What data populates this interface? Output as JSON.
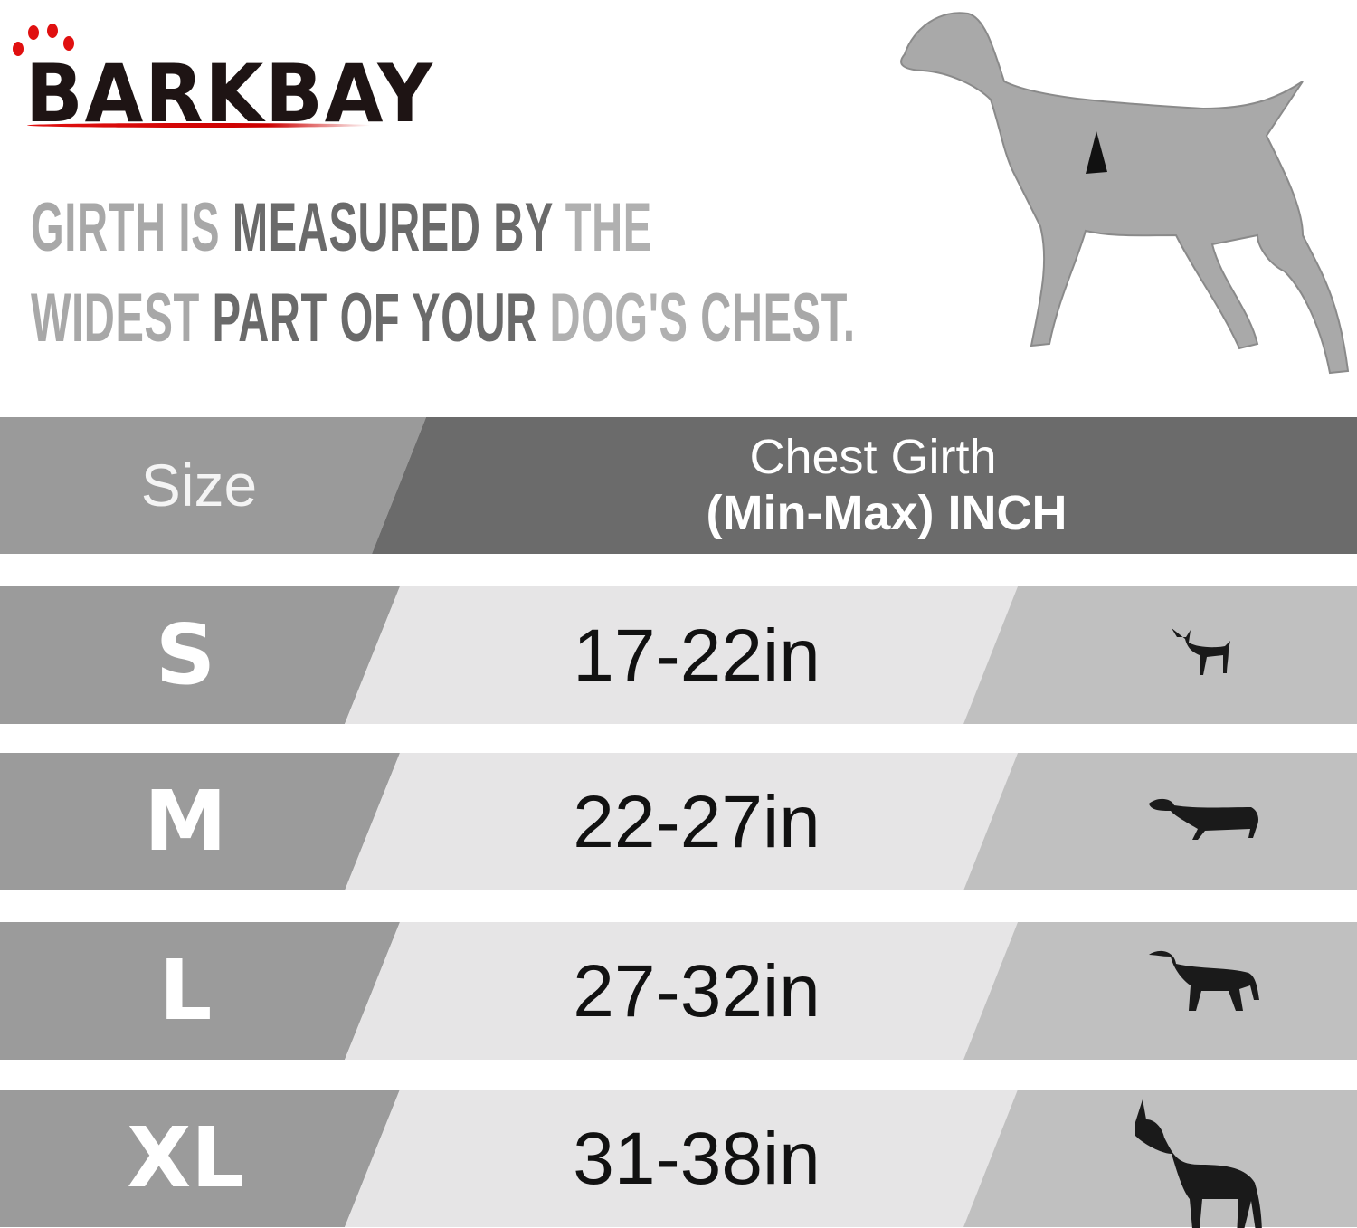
{
  "brand": {
    "logo_text": "BARKBAY",
    "accent_color": "#e01010"
  },
  "headline": {
    "line1": [
      "GIRTH IS ",
      "MEASURED BY ",
      "THE"
    ],
    "line2": [
      "WIDEST ",
      "PART OF YOUR ",
      "DOG'S ",
      "CHEST."
    ]
  },
  "table": {
    "header": {
      "size": "Size",
      "girth_line1": "Chest Girth",
      "girth_line2": "(Min-Max)  INCH"
    },
    "rows": [
      {
        "size": "S",
        "girth": "17-22in",
        "icon": "chihuahua-icon"
      },
      {
        "size": "M",
        "girth": "22-27in",
        "icon": "dachshund-icon"
      },
      {
        "size": "L",
        "girth": "27-32in",
        "icon": "labrador-icon"
      },
      {
        "size": "XL",
        "girth": "31-38in",
        "icon": "great-dane-icon"
      }
    ],
    "colors": {
      "header_left": "#9a9a9a",
      "header_right": "#6b6b6b",
      "row_left": "#9b9b9b",
      "row_mid": "#e6e5e6",
      "row_right": "#c0c0c0"
    }
  }
}
